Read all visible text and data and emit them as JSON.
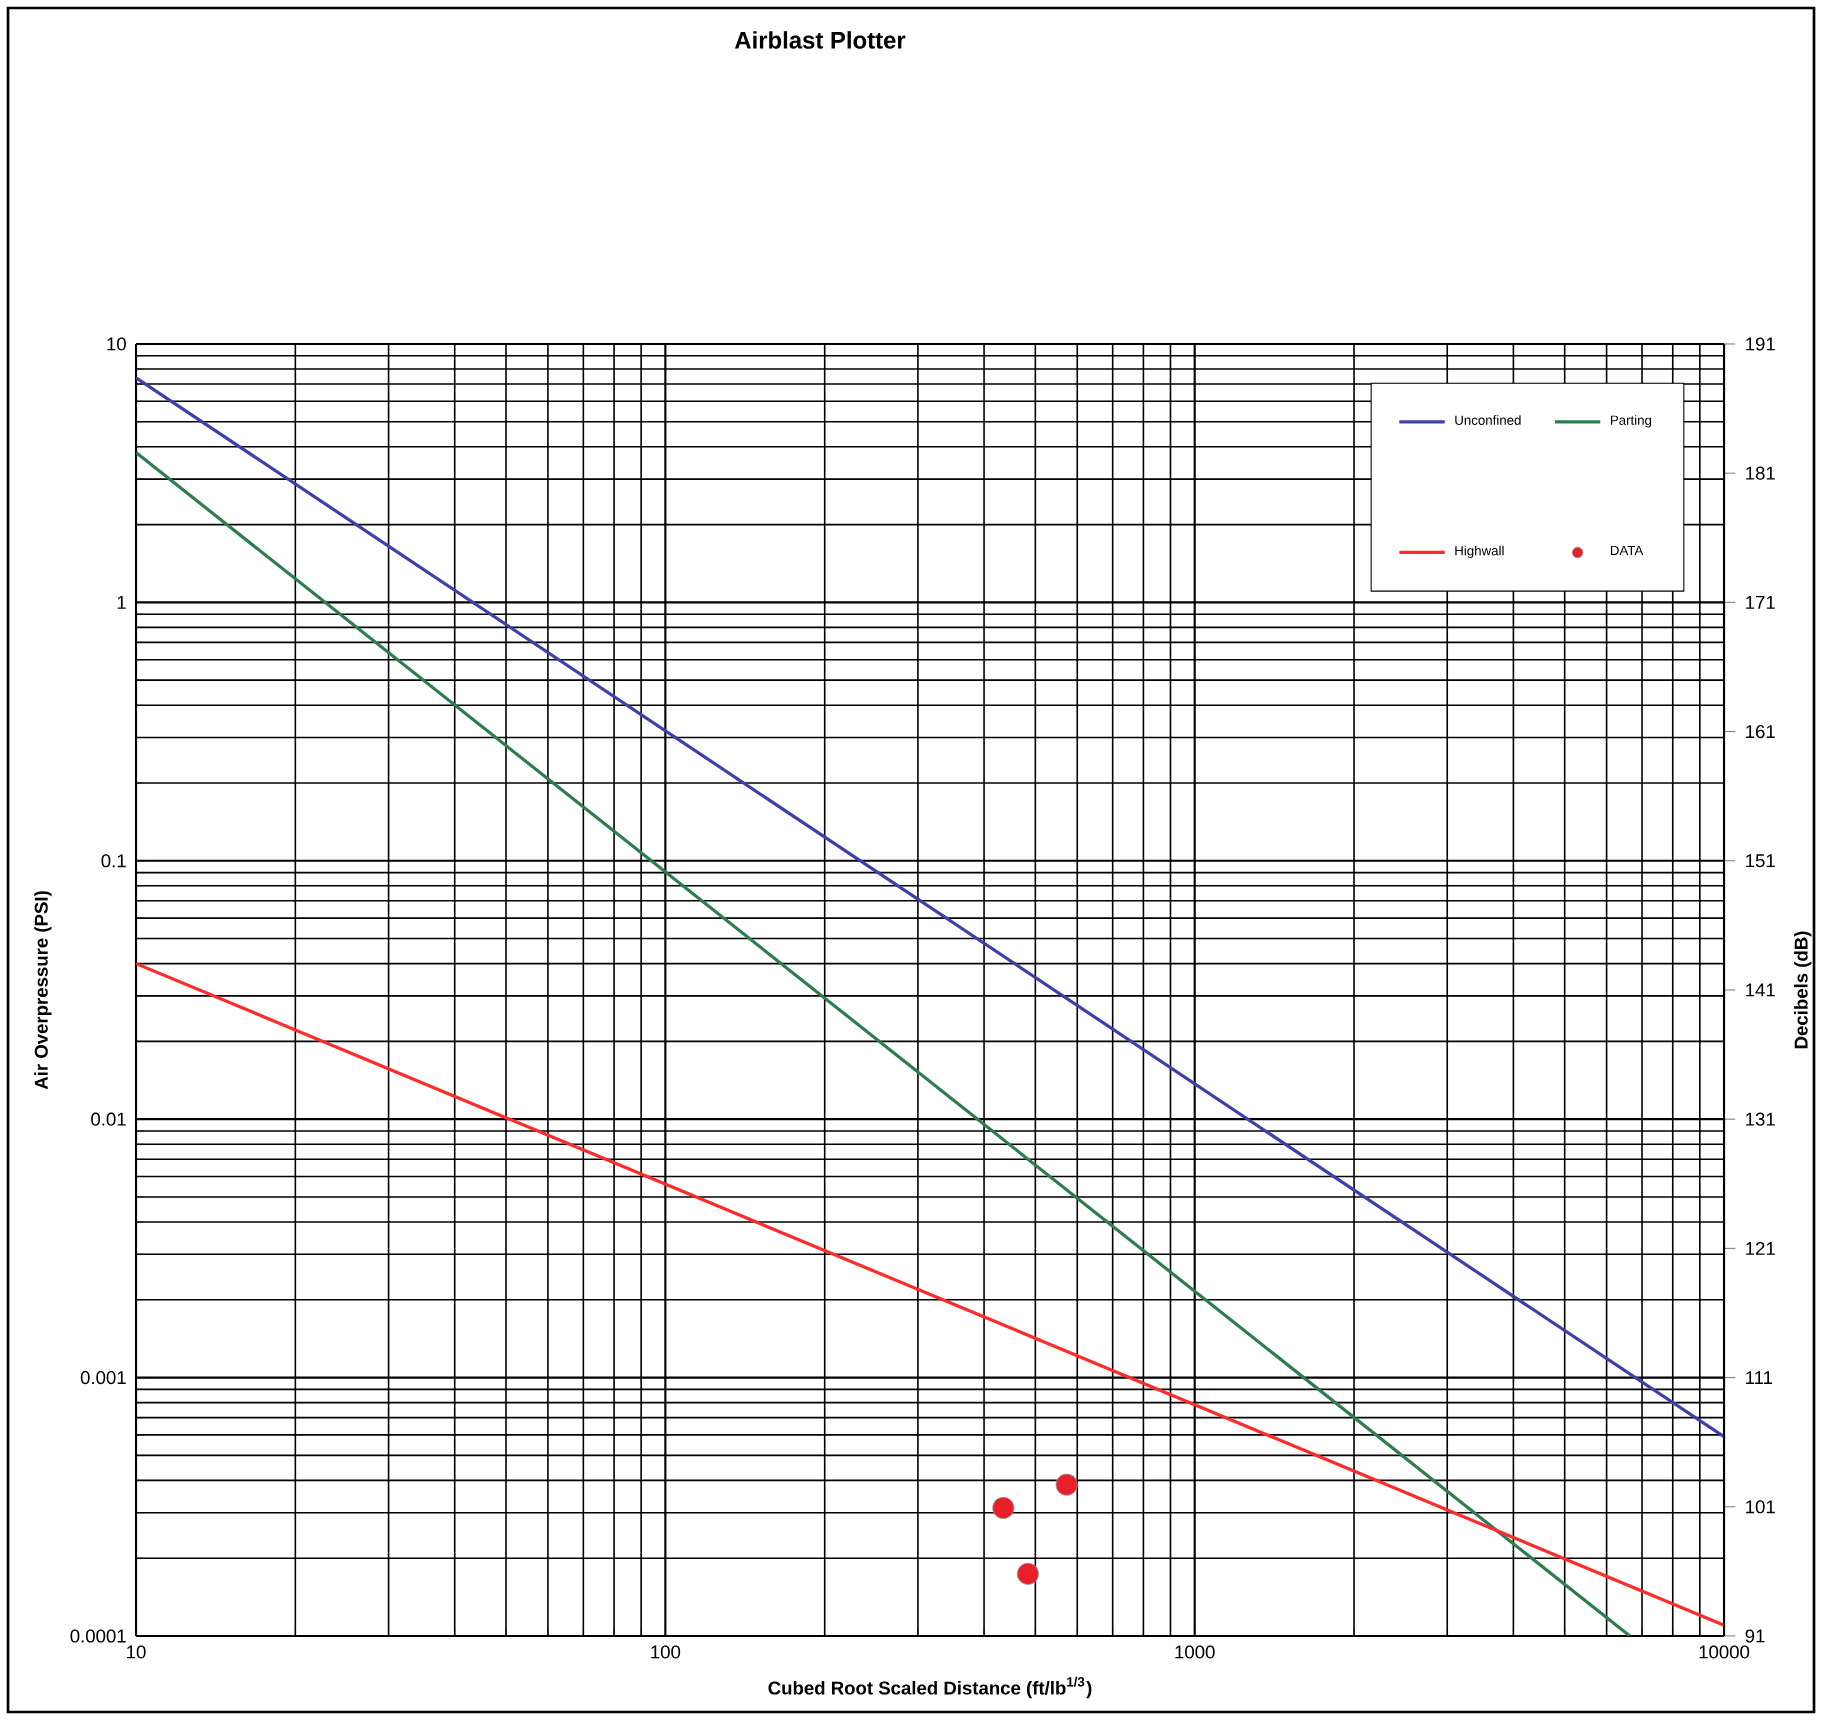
{
  "chart_data": {
    "type": "line",
    "title": "Airblast Plotter",
    "xlabel": "Cubed Root Scaled Distance (ft/lb$^{1/3}$)",
    "ylabel": "Air Overpressure (PSI)",
    "y2label": "Decibels (dB)",
    "log": "xy",
    "grid": true,
    "legend": "top right",
    "xlim": [
      10,
      10000
    ],
    "xticks": [
      10,
      100,
      1000,
      10000
    ],
    "ylim": [
      0.0001,
      10
    ],
    "yticks": [
      0.0001,
      0.001,
      0.01,
      0.1,
      1,
      10
    ],
    "y2lim": [
      91,
      191
    ],
    "y2ticks": [
      91,
      101,
      111,
      121,
      131,
      141,
      151,
      161,
      171,
      181,
      191
    ],
    "series": [
      {
        "name": "Unconfined",
        "color": "#3f3fa8",
        "x": [
          10,
          10000
        ],
        "values": [
          7.4,
          0.00059
        ]
      },
      {
        "name": "Parting",
        "color": "#2e7d50",
        "x": [
          10,
          6640
        ],
        "values": [
          3.8,
          0.0001
        ]
      },
      {
        "name": "Highwall",
        "color": "#ff2a2a",
        "x": [
          10,
          10000
        ],
        "values": [
          0.04,
          0.00011
        ]
      },
      {
        "name": "DATA",
        "type": "scatter",
        "marker": "circle",
        "color": "#e8202a",
        "x": [
          435,
          573,
          484
        ],
        "values": [
          0.000313,
          0.000385,
          0.000174
        ]
      }
    ]
  }
}
